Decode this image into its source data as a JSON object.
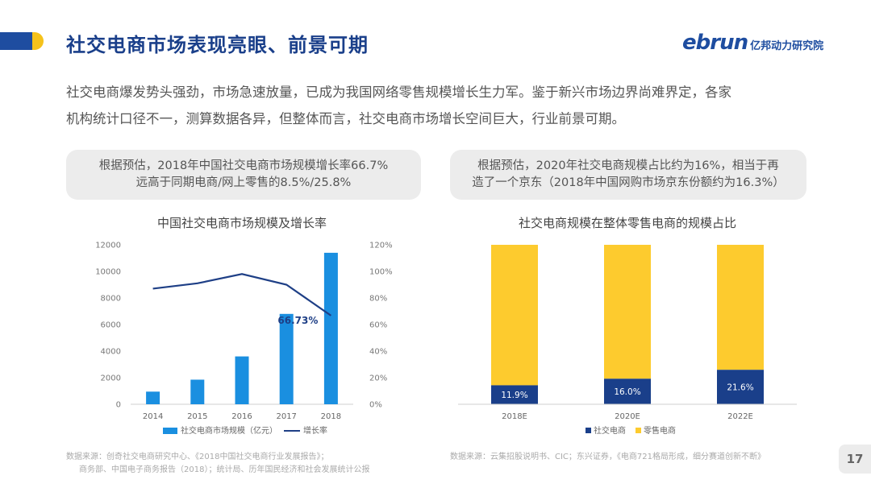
{
  "header": {
    "title": "社交电商市场表现亮眼、前景可期",
    "logo_word": "ebrun",
    "logo_cn": "亿邦动力研究院"
  },
  "intro": {
    "line1": "社交电商爆发势头强劲，市场急速放量，已成为我国网络零售规模增长生力军。鉴于新兴市场边界尚难界定，各家",
    "line2": "机构统计口径不一，测算数据各异，但整体而言，社交电商市场增长空间巨大，行业前景可期。"
  },
  "notes": {
    "left_line1": "根据预估，2018年中国社交电商市场规模增长率66.7%",
    "left_line2": "远高于同期电商/网上零售的8.5%/25.8%",
    "right_line1": "根据预估，2020年社交电商规模占比约为16%，相当于再",
    "right_line2": "造了一个京东（2018年中国网购市场京东份额约为16.3%）"
  },
  "chart_data": [
    {
      "type": "bar",
      "title": "中国社交电商市场规模及增长率",
      "categories": [
        "2014",
        "2015",
        "2016",
        "2017",
        "2018"
      ],
      "series": [
        {
          "name": "社交电商市场规模（亿元）",
          "type": "bar",
          "axis": "left",
          "values": [
            950,
            1850,
            3600,
            6800,
            11400
          ]
        },
        {
          "name": "增长率",
          "type": "line",
          "axis": "right",
          "values": [
            87,
            91,
            98,
            90,
            66.73
          ]
        }
      ],
      "left_ticks": [
        "0",
        "2000",
        "4000",
        "6000",
        "8000",
        "10000",
        "12000"
      ],
      "right_ticks": [
        "0%",
        "20%",
        "40%",
        "60%",
        "80%",
        "100%",
        "120%"
      ],
      "ylim": [
        0,
        12000
      ],
      "y2lim": [
        0,
        120
      ],
      "annotation": "66.73%",
      "colors": {
        "bar": "#1a8fe0",
        "line": "#1e3f86"
      },
      "legend_position": "bottom"
    },
    {
      "type": "bar",
      "stacked": true,
      "title": "社交电商规模在整体零售电商的规模占比",
      "categories": [
        "2018E",
        "2020E",
        "2022E"
      ],
      "series": [
        {
          "name": "社交电商",
          "values": [
            11.9,
            16.0,
            21.6
          ]
        },
        {
          "name": "零售电商",
          "values": [
            88.1,
            84.0,
            78.4
          ]
        }
      ],
      "data_labels": [
        "11.9%",
        "16.0%",
        "21.6%"
      ],
      "ylim": [
        0,
        100
      ],
      "colors": {
        "social": "#1a3f8a",
        "retail": "#fdcb2e"
      },
      "legend_position": "bottom"
    }
  ],
  "sources": {
    "left_line1": "数据来源：创奇社交电商研究中心、《2018中国社交电商行业发展报告》；",
    "left_line2": "商务部、中国电子商务报告（2018）；统计局、历年国民经济和社会发展统计公报",
    "right": "数据来源：云集招股说明书、CIC；东兴证券，《电商721格局形成，细分赛道创新不断》"
  },
  "page_number": "17"
}
